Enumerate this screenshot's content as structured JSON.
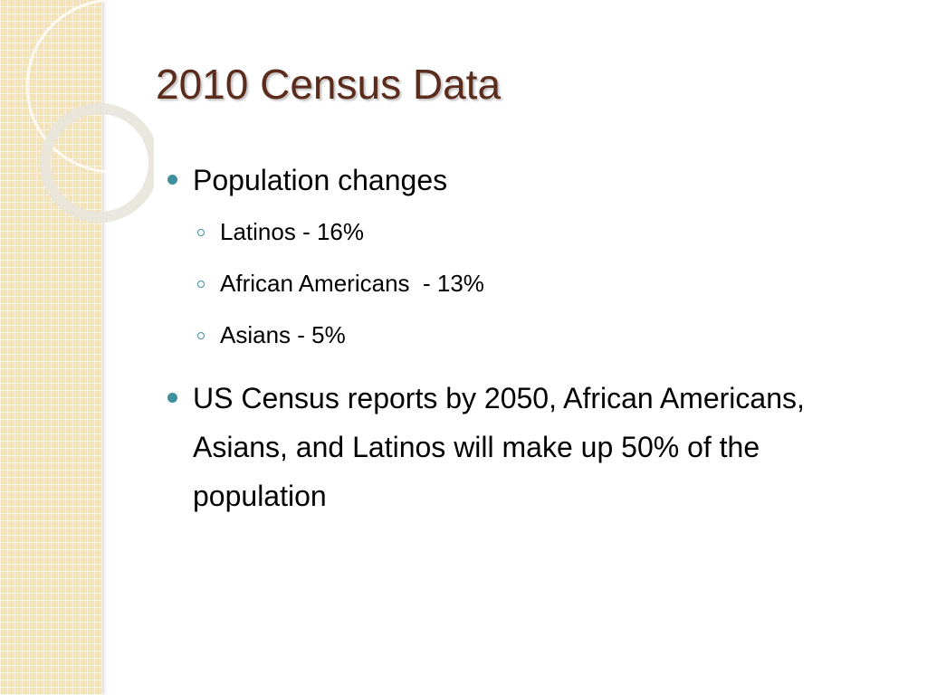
{
  "title": "2010 Census Data",
  "bullets": [
    {
      "text": "Population changes",
      "sub": [
        "Latinos - 16%",
        "African Americans  - 13%",
        "Asians - 5%"
      ]
    },
    {
      "text": "US Census reports by 2050, African Americans, Asians, and Latinos will make up 50% of the population"
    }
  ]
}
